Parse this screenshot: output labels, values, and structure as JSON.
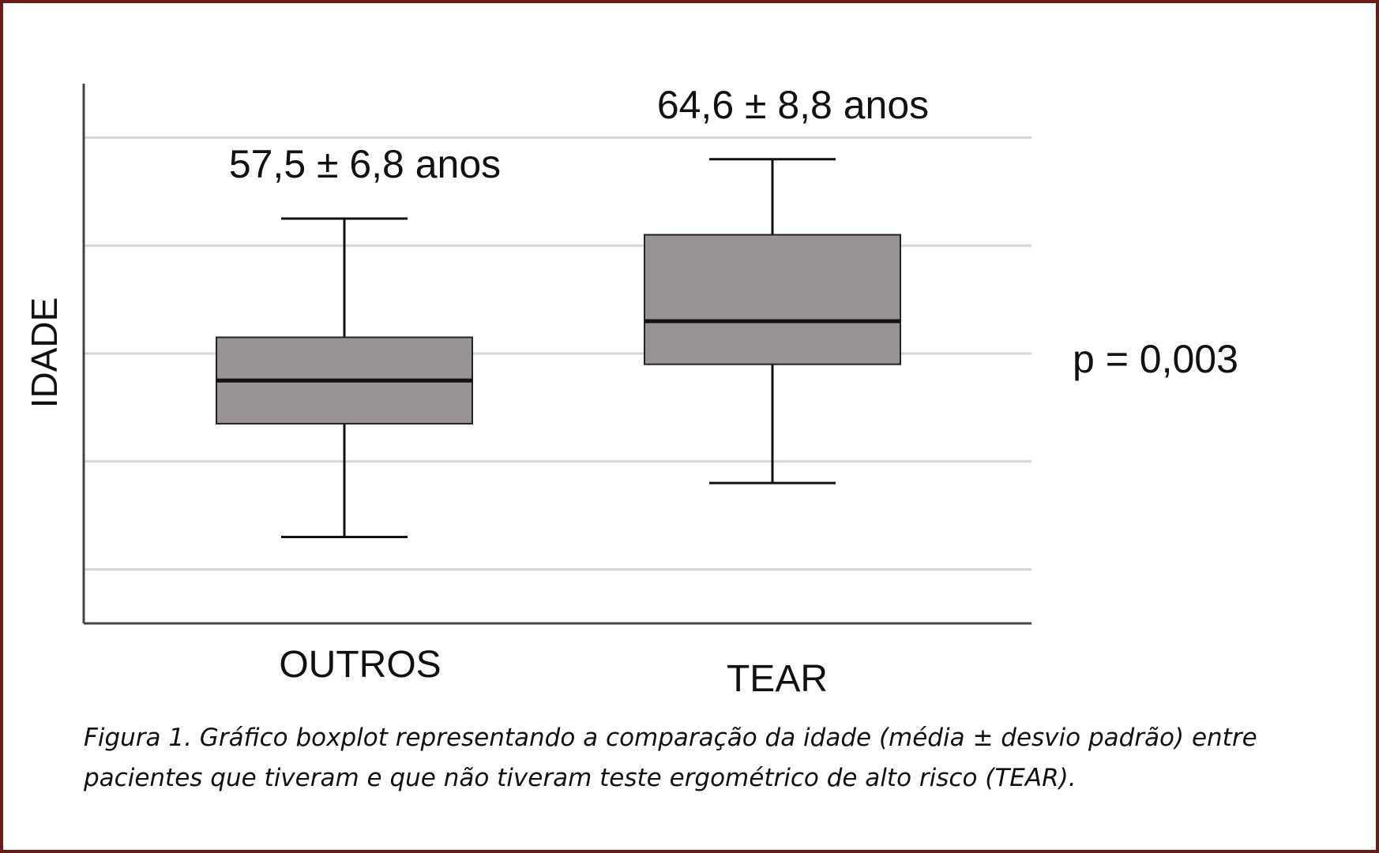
{
  "chart_data": {
    "type": "boxplot",
    "ylabel": "IDADE",
    "xlabel": "",
    "ylim": [
      35,
      85
    ],
    "gridlines_y": [
      40,
      50,
      60,
      70,
      80
    ],
    "grid": true,
    "categories": [
      "OUTROS",
      "TEAR"
    ],
    "boxes": [
      {
        "category": "OUTROS",
        "whisker_low": 43,
        "q1": 53.5,
        "median": 57.5,
        "q3": 61.5,
        "whisker_high": 72.5,
        "annotation": "57,5 ± 6,8 anos"
      },
      {
        "category": "TEAR",
        "whisker_low": 48,
        "q1": 59,
        "median": 63,
        "q3": 71,
        "whisker_high": 78,
        "annotation": "64,6 ± 8,8 anos"
      }
    ],
    "p_value": "p = 0,003"
  },
  "caption": "Figura 1. Gráfico boxplot representando a comparação da idade (média ± desvio padrão) entre pacientes que tiveram e que não tiveram teste ergométrico de alto risco (TEAR).",
  "colors": {
    "frame": "#6b1b1b",
    "box_fill": "#999393",
    "grid": "#d6d6d6"
  }
}
